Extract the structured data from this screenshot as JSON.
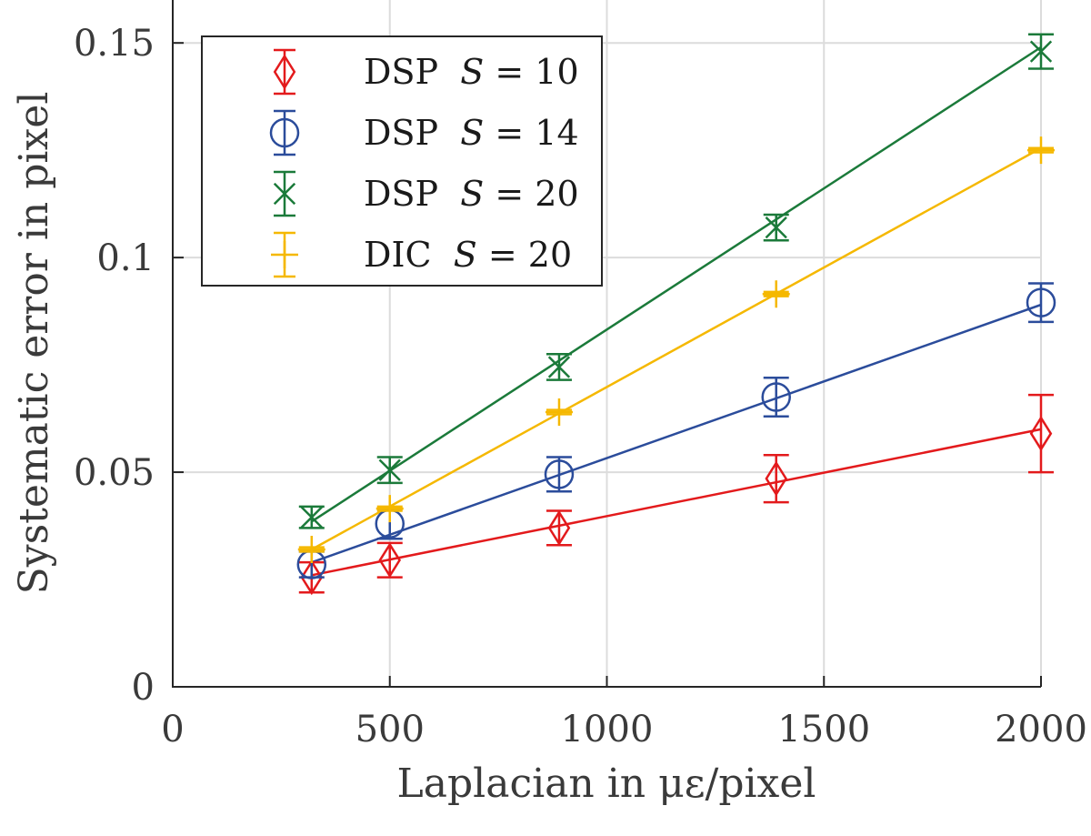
{
  "chart_data": {
    "type": "line",
    "title": "",
    "xlabel": "Laplacian in με/pixel",
    "ylabel": "Systematic error in pixel",
    "xlim": [
      0,
      2000
    ],
    "ylim": [
      0,
      0.16
    ],
    "xticks": [
      0,
      500,
      1000,
      1500,
      2000
    ],
    "xtick_labels": [
      "0",
      "500",
      "1000",
      "1500",
      "2000"
    ],
    "yticks": [
      0,
      0.05,
      0.1,
      0.15
    ],
    "ytick_labels": [
      "0",
      "0.05",
      "0.1",
      "0.15"
    ],
    "grid": true,
    "legend_position": "top-left",
    "series": [
      {
        "name": "DSP S = 10",
        "label_prefix": "DSP",
        "label_var": "S",
        "label_eq": " = 10",
        "color": "#e31a1c",
        "marker": "diamond",
        "x": [
          320,
          500,
          890,
          1390,
          2000
        ],
        "y": [
          0.0255,
          0.0295,
          0.037,
          0.0485,
          0.059
        ],
        "err": [
          0.0035,
          0.004,
          0.004,
          0.0055,
          0.009
        ],
        "fit": [
          [
            320,
            0.026
          ],
          [
            2000,
            0.06
          ]
        ]
      },
      {
        "name": "DSP S = 14",
        "label_prefix": "DSP",
        "label_var": "S",
        "label_eq": " = 14",
        "color": "#2b4c9b",
        "marker": "circle",
        "x": [
          320,
          500,
          890,
          1390,
          2000
        ],
        "y": [
          0.0285,
          0.038,
          0.0495,
          0.0675,
          0.0895
        ],
        "err": [
          0.003,
          0.0035,
          0.004,
          0.0045,
          0.0045
        ],
        "fit": [
          [
            320,
            0.029
          ],
          [
            2000,
            0.089
          ]
        ]
      },
      {
        "name": "DSP S = 20",
        "label_prefix": "DSP",
        "label_var": "S",
        "label_eq": " = 20",
        "color": "#1b7a3a",
        "marker": "x",
        "x": [
          320,
          500,
          890,
          1390,
          2000
        ],
        "y": [
          0.0395,
          0.0505,
          0.0745,
          0.107,
          0.148
        ],
        "err": [
          0.0025,
          0.003,
          0.003,
          0.003,
          0.004
        ],
        "fit": [
          [
            320,
            0.0385
          ],
          [
            2000,
            0.149
          ]
        ]
      },
      {
        "name": "DIC S = 20",
        "label_prefix": "DIC",
        "label_var": "S",
        "label_eq": " = 20",
        "color": "#f5b800",
        "marker": "plus",
        "x": [
          320,
          500,
          890,
          1390,
          2000
        ],
        "y": [
          0.032,
          0.0415,
          0.064,
          0.0915,
          0.125
        ],
        "err": [
          0.0005,
          0.0005,
          0.0005,
          0.0005,
          0.0005
        ],
        "fit": [
          [
            320,
            0.032
          ],
          [
            2000,
            0.1255
          ]
        ]
      }
    ]
  }
}
